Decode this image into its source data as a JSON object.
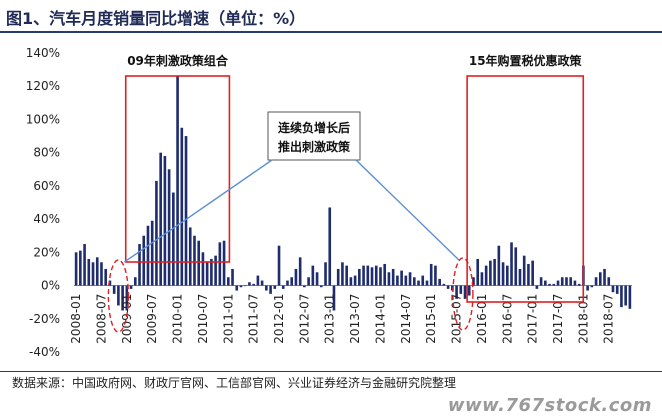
{
  "header": {
    "title": "图1、汽车月度销量同比增速（单位：%）"
  },
  "footer": {
    "source": "数据来源：中国政府网、财政厅官网、工信部官网、兴业证券经济与金融研究院整理"
  },
  "watermark": {
    "text": "www.767stock.com"
  },
  "colors": {
    "bar": "#1f2d6e",
    "annotation_box": "#e02020",
    "arrow": "#5b8fd6",
    "title": "#1f2a56"
  },
  "chart_data": {
    "type": "bar",
    "y_tick_labels": [
      "140%",
      "120%",
      "100%",
      "80%",
      "60%",
      "40%",
      "20%",
      "0%",
      "-20%",
      "-40%"
    ],
    "ylim": [
      -40,
      140
    ],
    "ytick_values": [
      140,
      120,
      100,
      80,
      60,
      40,
      20,
      0,
      -20,
      -40
    ],
    "x_tick_labels": [
      "2008-01",
      "2008-07",
      "2009-01",
      "2009-07",
      "2010-01",
      "2010-07",
      "2011-01",
      "2011-07",
      "2012-01",
      "2012-07",
      "2013-01",
      "2013-07",
      "2014-01",
      "2014-07",
      "2015-01",
      "2015-07",
      "2016-01",
      "2016-07",
      "2017-01",
      "2017-07",
      "2018-01",
      "2018-07"
    ],
    "start_month": "2008-01",
    "values": [
      20,
      21,
      25,
      16,
      14,
      17,
      14,
      10,
      3,
      -5,
      -12,
      -15,
      -15,
      -2,
      5,
      25,
      30,
      36,
      39,
      63,
      80,
      78,
      70,
      56,
      126,
      95,
      90,
      35,
      30,
      27,
      20,
      14,
      16,
      18,
      26,
      27,
      5,
      10,
      -3,
      -1,
      0,
      2,
      1,
      6,
      3,
      -3,
      -5,
      -2,
      24,
      -2,
      3,
      5,
      10,
      17,
      -1,
      5,
      12,
      8,
      -1,
      14,
      47,
      -15,
      10,
      14,
      12,
      5,
      6,
      10,
      12,
      12,
      11,
      12,
      11,
      13,
      8,
      10,
      6,
      9,
      6,
      8,
      5,
      3,
      6,
      3,
      13,
      12,
      4,
      1,
      -2,
      -3,
      -8,
      -5,
      -8,
      -6,
      5,
      16,
      8,
      12,
      15,
      16,
      24,
      14,
      12,
      26,
      23,
      10,
      18,
      13,
      15,
      -2,
      5,
      3,
      1,
      1,
      3,
      5,
      5,
      5,
      3,
      1,
      12,
      -3,
      -1,
      5,
      8,
      10,
      5,
      -4,
      -5,
      -13,
      -12,
      -14
    ],
    "annotations": [
      {
        "label": "09年刺激政策组合"
      },
      {
        "label": "15年购置税优惠政策"
      },
      {
        "label_line1": "连续负增长后",
        "label_line2": "推出刺激政策"
      }
    ],
    "grid": false,
    "legend": "none"
  }
}
